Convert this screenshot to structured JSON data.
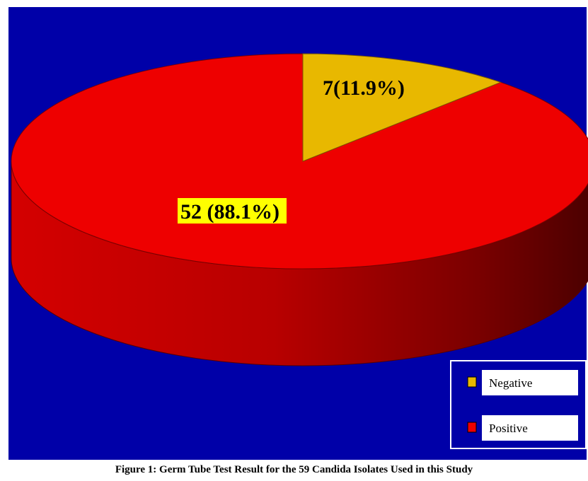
{
  "caption": "Figure 1: Germ Tube Test Result for the 59 Candida Isolates Used in this Study",
  "colors": {
    "background": "#0000a8",
    "positive": "#ee0000",
    "negative": "#e8b800",
    "label_highlight": "#ffff00"
  },
  "chart_data": {
    "type": "pie",
    "style": "3d",
    "total": 59,
    "slices": [
      {
        "name": "Negative",
        "value": 7,
        "percent": 11.9,
        "label": "7(11.9%)"
      },
      {
        "name": "Positive",
        "value": 52,
        "percent": 88.1,
        "label": "52 (88.1%)"
      }
    ],
    "legend": {
      "placement": "bottom-right",
      "entries": [
        "Negative",
        "Positive"
      ]
    }
  }
}
